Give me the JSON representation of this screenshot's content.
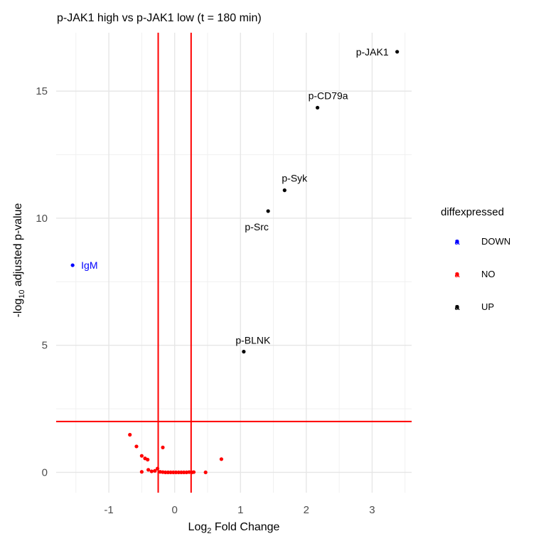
{
  "chart_data": {
    "type": "scatter",
    "title": "p-JAK1 high vs p-JAK1 low (t = 180 min)",
    "xlabel_prefix": "Log",
    "xlabel_sub": "2",
    "xlabel_suffix": " Fold Change",
    "ylabel_prefix": "-log",
    "ylabel_sub": "10",
    "ylabel_suffix": " adjusted p-value",
    "xlim": [
      -1.8,
      3.6
    ],
    "ylim": [
      -0.8,
      17.3
    ],
    "x_ticks": [
      -1,
      0,
      1,
      2,
      3
    ],
    "y_ticks": [
      0,
      5,
      10,
      15
    ],
    "grid": true,
    "thresholds": {
      "vlines": [
        -0.25,
        0.25
      ],
      "hline": 2,
      "color": "#ff0000"
    },
    "legend": {
      "title": "diffexpressed",
      "position": "right",
      "entries": [
        {
          "label": "DOWN",
          "color": "#0000ff"
        },
        {
          "label": "NO",
          "color": "#ff0000"
        },
        {
          "label": "UP",
          "color": "#000000"
        }
      ]
    },
    "series": [
      {
        "name": "DOWN",
        "color": "#0000ff",
        "points": [
          {
            "x": -1.55,
            "y": 8.15,
            "label": "IgM"
          }
        ]
      },
      {
        "name": "UP",
        "color": "#000000",
        "points": [
          {
            "x": 3.38,
            "y": 16.55,
            "label": "p-JAK1"
          },
          {
            "x": 2.17,
            "y": 14.35,
            "label": "p-CD79a"
          },
          {
            "x": 1.67,
            "y": 11.1,
            "label": "p-Syk"
          },
          {
            "x": 1.42,
            "y": 10.28,
            "label": "p-Src"
          },
          {
            "x": 1.05,
            "y": 4.75,
            "label": "p-BLNK"
          }
        ]
      },
      {
        "name": "NO",
        "color": "#ff0000",
        "points": [
          {
            "x": -0.68,
            "y": 1.48
          },
          {
            "x": -0.58,
            "y": 1.02
          },
          {
            "x": -0.5,
            "y": 0.65
          },
          {
            "x": -0.45,
            "y": 0.55
          },
          {
            "x": -0.41,
            "y": 0.5
          },
          {
            "x": -0.18,
            "y": 0.98
          },
          {
            "x": 0.71,
            "y": 0.52
          },
          {
            "x": -0.5,
            "y": 0.02
          },
          {
            "x": -0.4,
            "y": 0.1
          },
          {
            "x": -0.35,
            "y": 0.04
          },
          {
            "x": -0.3,
            "y": 0.06
          },
          {
            "x": -0.26,
            "y": 0.15
          },
          {
            "x": -0.22,
            "y": 0.02
          },
          {
            "x": -0.18,
            "y": 0.01
          },
          {
            "x": -0.14,
            "y": 0.0
          },
          {
            "x": -0.1,
            "y": 0.0
          },
          {
            "x": -0.06,
            "y": 0.0
          },
          {
            "x": -0.02,
            "y": 0.0
          },
          {
            "x": 0.02,
            "y": 0.0
          },
          {
            "x": 0.06,
            "y": 0.0
          },
          {
            "x": 0.1,
            "y": 0.0
          },
          {
            "x": 0.14,
            "y": 0.0
          },
          {
            "x": 0.18,
            "y": 0.0
          },
          {
            "x": 0.22,
            "y": 0.01
          },
          {
            "x": 0.26,
            "y": 0.0
          },
          {
            "x": 0.29,
            "y": 0.01
          },
          {
            "x": 0.47,
            "y": 0.0
          }
        ]
      }
    ]
  }
}
